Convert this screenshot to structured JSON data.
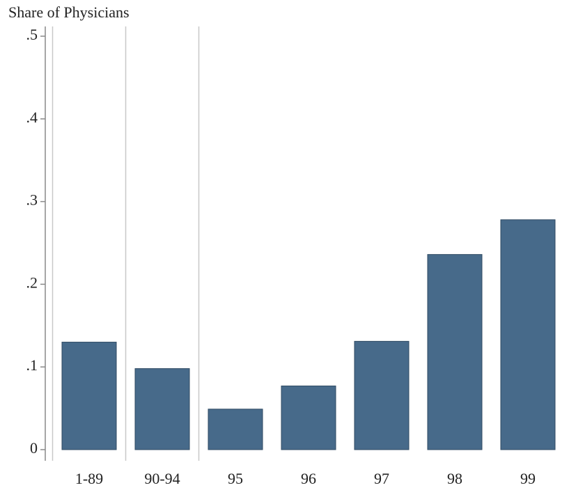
{
  "chart_data": {
    "type": "bar",
    "y_label": "Share of Physicians",
    "categories": [
      "1-89",
      "90-94",
      "95",
      "96",
      "97",
      "98",
      "99"
    ],
    "values": [
      0.13,
      0.098,
      0.049,
      0.077,
      0.131,
      0.236,
      0.278
    ],
    "color": "#476a8a",
    "ylim": [
      0,
      0.5
    ],
    "yticks": [
      0,
      {
        "value": 0.1,
        "label": ".1"
      },
      {
        "value": 0.2,
        "label": ".2"
      },
      {
        "value": 0.3,
        "label": ".3"
      },
      {
        "value": 0.4,
        "label": ".4"
      },
      {
        "value": 0.5,
        "label": ".5"
      }
    ],
    "grid": false
  }
}
